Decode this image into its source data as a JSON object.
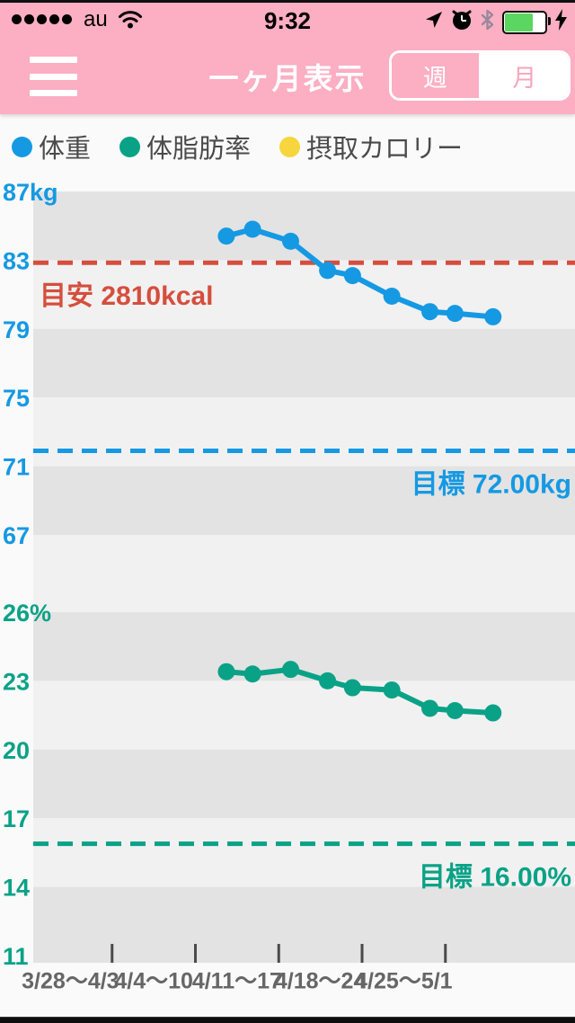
{
  "status_bar": {
    "signal_dots": 5,
    "carrier": "au",
    "time": "9:32",
    "battery_percent": 68,
    "icons": [
      "location-icon",
      "alarm-icon",
      "bluetooth-icon",
      "battery-icon",
      "charging-bolt-icon"
    ]
  },
  "header": {
    "title": "一ヶ月表示",
    "segments": [
      {
        "label": "週",
        "selected": false
      },
      {
        "label": "月",
        "selected": true
      }
    ]
  },
  "legend": [
    {
      "label": "体重",
      "color": "#1599e3"
    },
    {
      "label": "体脂肪率",
      "color": "#0aa287"
    },
    {
      "label": "摂取カロリー",
      "color": "#f6d63c"
    }
  ],
  "chart_data": {
    "type": "line",
    "x_days_from_3_28": [
      16.6,
      18.8,
      22.0,
      25.1,
      27.2,
      30.5,
      33.7,
      35.8,
      39.0
    ],
    "x_axis": {
      "bin_labels": [
        "3/28〜4/3",
        "4/4〜10",
        "4/11〜17",
        "4/18〜24",
        "4/25〜5/1"
      ],
      "bin_center_days": [
        3.5,
        10.5,
        17.5,
        24.5,
        31.5
      ],
      "tick_boundary_days": [
        7,
        14,
        21,
        28,
        35
      ],
      "label_color": "#666666"
    },
    "colors": {
      "band_dark": "#e3e3e3",
      "band_light": "#f1f1f1",
      "guide_red": "#d54e3d"
    },
    "charts": [
      {
        "name": "体重",
        "unit": "kg",
        "color": "#1599e3",
        "ylim": [
          67,
          87
        ],
        "y_tick_values": [
          87,
          83,
          79,
          75,
          71,
          67
        ],
        "y_tick_labels": [
          "87kg",
          "83",
          "79",
          "75",
          "71",
          "67"
        ],
        "values": [
          84.4,
          84.8,
          84.1,
          82.4,
          82.1,
          80.9,
          80.0,
          79.9,
          79.7
        ],
        "guide_line": {
          "label": "目安 2810kcal",
          "value": 82.8,
          "color": "#d54e3d",
          "align": "left"
        },
        "target_line": {
          "label": "目標 72.00kg",
          "value": 72.0,
          "color": "#1599e3",
          "align": "right"
        }
      },
      {
        "name": "体脂肪率",
        "unit": "%",
        "color": "#0aa287",
        "ylim": [
          11,
          26
        ],
        "y_tick_values": [
          26,
          23,
          20,
          17,
          14,
          11
        ],
        "y_tick_labels": [
          "26%",
          "23",
          "20",
          "17",
          "14",
          "11"
        ],
        "values": [
          23.4,
          23.3,
          23.5,
          23.0,
          22.7,
          22.6,
          21.8,
          21.7,
          21.6
        ],
        "target_line": {
          "label": "目標 16.00%",
          "value": 16.0,
          "color": "#0aa287",
          "align": "right"
        }
      },
      {
        "name": "摂取カロリー",
        "unit": "kcal",
        "color": "#f6d63c",
        "values": []
      }
    ]
  }
}
